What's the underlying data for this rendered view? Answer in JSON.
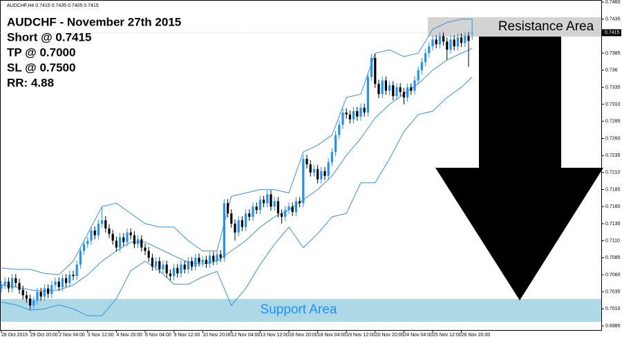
{
  "chart_data": {
    "type": "candlestick",
    "header": "AUDCHF,H4  0.7415 0.7435 0.7405 0.7415",
    "title_lines": [
      "AUDCHF - November 27th 2015",
      "Short @ 0.7415",
      "TP @ 0.7000",
      "SL @ 0.7500",
      "RR: 4.88"
    ],
    "resistance_label": "Resistance Area",
    "support_label": "Support Area",
    "price_label": 0.7415,
    "up_color": "#1e90ff",
    "down_color": "#000000",
    "ylim": [
      0.6979,
      0.7463
    ],
    "yticks": [
      {
        "value": 0.746,
        "label": "0.7460"
      },
      0.7435,
      0.7385,
      0.736,
      0.7335,
      {
        "value": 0.731,
        "label": "0.7310"
      },
      0.7285,
      {
        "value": 0.726,
        "label": "0.7260"
      },
      0.7235,
      {
        "value": 0.721,
        "label": "0.7210"
      },
      0.7185,
      {
        "value": 0.716,
        "label": "0.7160"
      },
      0.7135,
      {
        "value": 0.711,
        "label": "0.7110"
      },
      0.7085,
      {
        "value": 0.706,
        "label": "0.7060"
      },
      0.7035,
      {
        "value": 0.701,
        "label": "0.7010"
      },
      0.6985
    ],
    "categories": [
      "28 Oct 2015",
      null,
      null,
      null,
      null,
      null,
      null,
      null,
      "29 Oct 20:00",
      null,
      null,
      null,
      null,
      null,
      null,
      null,
      "2 Nov 04:00",
      null,
      null,
      null,
      null,
      null,
      null,
      null,
      "3 Nov 12:00",
      null,
      null,
      null,
      null,
      null,
      null,
      null,
      "4 Nov 20:00",
      null,
      null,
      null,
      null,
      null,
      null,
      null,
      "6 Nov 04:00",
      null,
      null,
      null,
      null,
      null,
      null,
      null,
      "9 Nov 12:00",
      null,
      null,
      null,
      null,
      null,
      null,
      null,
      "10 Nov 20:00",
      null,
      null,
      null,
      null,
      null,
      null,
      null,
      "12 Nov 04:00",
      null,
      null,
      null,
      null,
      null,
      null,
      null,
      "13 Nov 12:00",
      null,
      null,
      null,
      null,
      null,
      null,
      null,
      "16 Nov 20:00",
      null,
      null,
      null,
      null,
      null,
      null,
      null,
      "18 Nov 04:00",
      null,
      null,
      null,
      null,
      null,
      null,
      null,
      "19 Nov 12:00",
      null,
      null,
      null,
      null,
      null,
      null,
      null,
      "20 Nov 20:00",
      null,
      null,
      null,
      null,
      null,
      null,
      null,
      "24 Nov 04:00",
      null,
      null,
      null,
      null,
      null,
      null,
      null,
      "25 Nov 12:00",
      null,
      null,
      null,
      null,
      null,
      null,
      null,
      "26 Nov 20:00",
      null,
      null,
      null
    ],
    "open": [
      0.704,
      0.7045,
      0.705,
      0.704,
      0.7055,
      0.7048,
      0.7038,
      0.703,
      0.7025,
      0.7015,
      0.7022,
      0.7035,
      0.7028,
      0.704,
      0.7032,
      0.7045,
      0.705,
      0.7042,
      0.7055,
      0.7048,
      0.706,
      0.7058,
      0.7075,
      0.7095,
      0.7105,
      0.711,
      0.7125,
      0.7118,
      0.7135,
      0.714,
      0.7128,
      0.712,
      0.711,
      0.71,
      0.7115,
      0.7108,
      0.7122,
      0.7118,
      0.7105,
      0.7112,
      0.71,
      0.7095,
      0.7085,
      0.7072,
      0.708,
      0.7068,
      0.7075,
      0.7062,
      0.7058,
      0.707,
      0.7062,
      0.7075,
      0.7068,
      0.708,
      0.7072,
      0.7085,
      0.7078,
      0.7082,
      0.7076,
      0.7088,
      0.708,
      0.709,
      0.7085,
      0.7165,
      0.715,
      0.7135,
      0.7122,
      0.714,
      0.713,
      0.715,
      0.7145,
      0.716,
      0.7155,
      0.717,
      0.7165,
      0.7178,
      0.716,
      0.7168,
      0.715,
      0.7145,
      0.7155,
      0.716,
      0.7152,
      0.7168,
      0.7165,
      0.723,
      0.7222,
      0.721,
      0.7215,
      0.72,
      0.7212,
      0.7205,
      0.7225,
      0.724,
      0.7265,
      0.728,
      0.7298,
      0.7295,
      0.7288,
      0.73,
      0.7292,
      0.7305,
      0.7298,
      0.735,
      0.7378,
      0.734,
      0.7325,
      0.7345,
      0.733,
      0.7338,
      0.7322,
      0.7335,
      0.7328,
      0.732,
      0.7335,
      0.733,
      0.7345,
      0.736,
      0.7372,
      0.7385,
      0.7395,
      0.7405,
      0.7398,
      0.741,
      0.7402,
      0.739,
      0.7405,
      0.7395,
      0.7408,
      0.74,
      0.741,
      0.7415
    ],
    "high": [
      0.7051,
      0.7056,
      0.7056,
      0.7061,
      0.7061,
      0.7054,
      0.7044,
      0.7036,
      0.7031,
      0.7028,
      0.7041,
      0.7041,
      0.7046,
      0.7046,
      0.7051,
      0.7056,
      0.7056,
      0.7061,
      0.7061,
      0.7066,
      0.7066,
      0.7081,
      0.7101,
      0.7111,
      0.7116,
      0.7131,
      0.7131,
      0.7141,
      0.716,
      0.7146,
      0.7134,
      0.7126,
      0.7116,
      0.7121,
      0.7121,
      0.7128,
      0.7128,
      0.7124,
      0.7118,
      0.7118,
      0.7106,
      0.7101,
      0.7091,
      0.7086,
      0.7086,
      0.7081,
      0.7081,
      0.7068,
      0.7076,
      0.7076,
      0.7081,
      0.7081,
      0.7086,
      0.7086,
      0.7091,
      0.7091,
      0.7088,
      0.7088,
      0.7094,
      0.7094,
      0.7096,
      0.7096,
      0.7171,
      0.7171,
      0.7156,
      0.7141,
      0.7146,
      0.7146,
      0.7156,
      0.7156,
      0.7166,
      0.7166,
      0.7176,
      0.7176,
      0.7184,
      0.7184,
      0.7174,
      0.7174,
      0.7156,
      0.7161,
      0.7166,
      0.7166,
      0.7174,
      0.7174,
      0.7236,
      0.7236,
      0.7228,
      0.7221,
      0.7221,
      0.7218,
      0.7218,
      0.7231,
      0.7246,
      0.7271,
      0.7286,
      0.7304,
      0.7304,
      0.7301,
      0.7306,
      0.7306,
      0.7311,
      0.7311,
      0.7356,
      0.7384,
      0.7384,
      0.7346,
      0.7351,
      0.7351,
      0.7344,
      0.7344,
      0.7341,
      0.7341,
      0.7334,
      0.7341,
      0.7341,
      0.7351,
      0.7366,
      0.7378,
      0.7391,
      0.7401,
      0.7411,
      0.7411,
      0.7416,
      0.7416,
      0.7408,
      0.7411,
      0.7411,
      0.7414,
      0.7414,
      0.7416,
      0.7416,
      0.7435
    ],
    "low": [
      0.7034,
      0.7039,
      0.7034,
      0.7034,
      0.7042,
      0.7032,
      0.7024,
      0.7019,
      0.7009,
      0.7009,
      0.7016,
      0.7022,
      0.7022,
      0.7026,
      0.7026,
      0.7039,
      0.7036,
      0.7036,
      0.7042,
      0.7042,
      0.7052,
      0.7052,
      0.7069,
      0.7089,
      0.7099,
      0.7104,
      0.7112,
      0.7112,
      0.7129,
      0.7122,
      0.7114,
      0.7104,
      0.7094,
      0.7094,
      0.7102,
      0.7102,
      0.7112,
      0.7099,
      0.7099,
      0.7094,
      0.7089,
      0.7079,
      0.7066,
      0.7066,
      0.7062,
      0.7062,
      0.7056,
      0.7052,
      0.7052,
      0.7056,
      0.7056,
      0.7062,
      0.7062,
      0.7066,
      0.7066,
      0.7072,
      0.7072,
      0.707,
      0.707,
      0.7074,
      0.7074,
      0.7079,
      0.7079,
      0.7144,
      0.7129,
      0.711,
      0.7116,
      0.7124,
      0.7124,
      0.7139,
      0.7139,
      0.7149,
      0.7149,
      0.7159,
      0.7159,
      0.7154,
      0.7154,
      0.7144,
      0.7135,
      0.7139,
      0.7149,
      0.7146,
      0.7146,
      0.7159,
      0.7159,
      0.7216,
      0.7204,
      0.7204,
      0.7194,
      0.7194,
      0.7199,
      0.7199,
      0.7219,
      0.7234,
      0.7259,
      0.7274,
      0.7289,
      0.7282,
      0.7282,
      0.7286,
      0.7286,
      0.7292,
      0.7292,
      0.7344,
      0.7334,
      0.7319,
      0.7319,
      0.7324,
      0.7324,
      0.7316,
      0.7316,
      0.7322,
      0.731,
      0.7314,
      0.7324,
      0.7324,
      0.7339,
      0.7354,
      0.7366,
      0.7379,
      0.7389,
      0.7392,
      0.7392,
      0.7396,
      0.7375,
      0.7384,
      0.7389,
      0.7389,
      0.7394,
      0.7394,
      0.7365,
      0.7405
    ],
    "close": [
      0.7045,
      0.705,
      0.704,
      0.7055,
      0.7048,
      0.7038,
      0.703,
      0.7025,
      0.7015,
      0.7022,
      0.7035,
      0.7028,
      0.704,
      0.7032,
      0.7045,
      0.705,
      0.7042,
      0.7055,
      0.7048,
      0.706,
      0.7058,
      0.7075,
      0.7095,
      0.7105,
      0.711,
      0.7125,
      0.7118,
      0.7135,
      0.714,
      0.7128,
      0.712,
      0.711,
      0.71,
      0.7115,
      0.7108,
      0.7122,
      0.7118,
      0.7105,
      0.7112,
      0.71,
      0.7095,
      0.7085,
      0.7072,
      0.708,
      0.7068,
      0.7075,
      0.7062,
      0.7058,
      0.707,
      0.7062,
      0.7075,
      0.7068,
      0.708,
      0.7072,
      0.7085,
      0.7078,
      0.7082,
      0.7076,
      0.7088,
      0.708,
      0.709,
      0.7085,
      0.7165,
      0.715,
      0.7135,
      0.7122,
      0.714,
      0.713,
      0.715,
      0.7145,
      0.716,
      0.7155,
      0.717,
      0.7165,
      0.7178,
      0.716,
      0.7168,
      0.715,
      0.7145,
      0.7155,
      0.716,
      0.7152,
      0.7168,
      0.7165,
      0.723,
      0.7222,
      0.721,
      0.7215,
      0.72,
      0.7212,
      0.7205,
      0.7225,
      0.724,
      0.7265,
      0.728,
      0.7298,
      0.7295,
      0.7288,
      0.73,
      0.7292,
      0.7305,
      0.7298,
      0.735,
      0.7378,
      0.734,
      0.7325,
      0.7345,
      0.733,
      0.7338,
      0.7322,
      0.7335,
      0.7328,
      0.732,
      0.7335,
      0.733,
      0.7345,
      0.736,
      0.7372,
      0.7385,
      0.7395,
      0.7405,
      0.7398,
      0.741,
      0.7402,
      0.739,
      0.7405,
      0.7395,
      0.7408,
      0.74,
      0.741,
      0.7403,
      0.7415
    ],
    "bands": [
      {
        "color": "#3a8fd8",
        "x": [
          0,
          4,
          8,
          12,
          16,
          20,
          24,
          28,
          32,
          36,
          40,
          44,
          48,
          52,
          56,
          60,
          64,
          68,
          72,
          76,
          80,
          84,
          88,
          92,
          96,
          100,
          104,
          108,
          112,
          116,
          120,
          124,
          128,
          131
        ],
        "values": [
          0.707,
          0.7068,
          0.7068,
          0.7062,
          0.706,
          0.708,
          0.712,
          0.716,
          0.7165,
          0.715,
          0.7135,
          0.713,
          0.713,
          0.711,
          0.7095,
          0.7095,
          0.7175,
          0.718,
          0.7185,
          0.7185,
          0.718,
          0.724,
          0.725,
          0.7265,
          0.732,
          0.7325,
          0.7385,
          0.739,
          0.738,
          0.7385,
          0.742,
          0.743,
          0.7435,
          0.7435
        ]
      },
      {
        "color": "#3a8fd8",
        "x": [
          0,
          4,
          8,
          12,
          16,
          20,
          24,
          28,
          32,
          36,
          40,
          44,
          48,
          52,
          56,
          60,
          64,
          68,
          72,
          76,
          80,
          84,
          88,
          92,
          96,
          100,
          104,
          108,
          112,
          116,
          120,
          124,
          128,
          131
        ],
        "values": [
          0.7045,
          0.7042,
          0.7038,
          0.7036,
          0.7038,
          0.7045,
          0.706,
          0.708,
          0.7095,
          0.7108,
          0.7108,
          0.7098,
          0.7088,
          0.7078,
          0.7076,
          0.708,
          0.7095,
          0.711,
          0.713,
          0.7145,
          0.7155,
          0.717,
          0.7185,
          0.7205,
          0.7235,
          0.726,
          0.729,
          0.731,
          0.7325,
          0.734,
          0.736,
          0.7375,
          0.7385,
          0.7392
        ]
      },
      {
        "color": "#3a8fd8",
        "x": [
          0,
          4,
          8,
          12,
          16,
          20,
          24,
          28,
          32,
          36,
          40,
          44,
          48,
          52,
          56,
          60,
          64,
          68,
          72,
          76,
          80,
          84,
          88,
          92,
          96,
          100,
          104,
          108,
          112,
          116,
          120,
          124,
          128,
          131
        ],
        "values": [
          0.702,
          0.7016,
          0.7008,
          0.701,
          0.7016,
          0.701,
          0.7,
          0.7,
          0.7025,
          0.7066,
          0.708,
          0.7066,
          0.7046,
          0.7046,
          0.7057,
          0.7065,
          0.7015,
          0.704,
          0.7075,
          0.7105,
          0.713,
          0.71,
          0.712,
          0.7145,
          0.715,
          0.7195,
          0.7195,
          0.723,
          0.727,
          0.7295,
          0.73,
          0.732,
          0.7335,
          0.735
        ]
      }
    ]
  }
}
